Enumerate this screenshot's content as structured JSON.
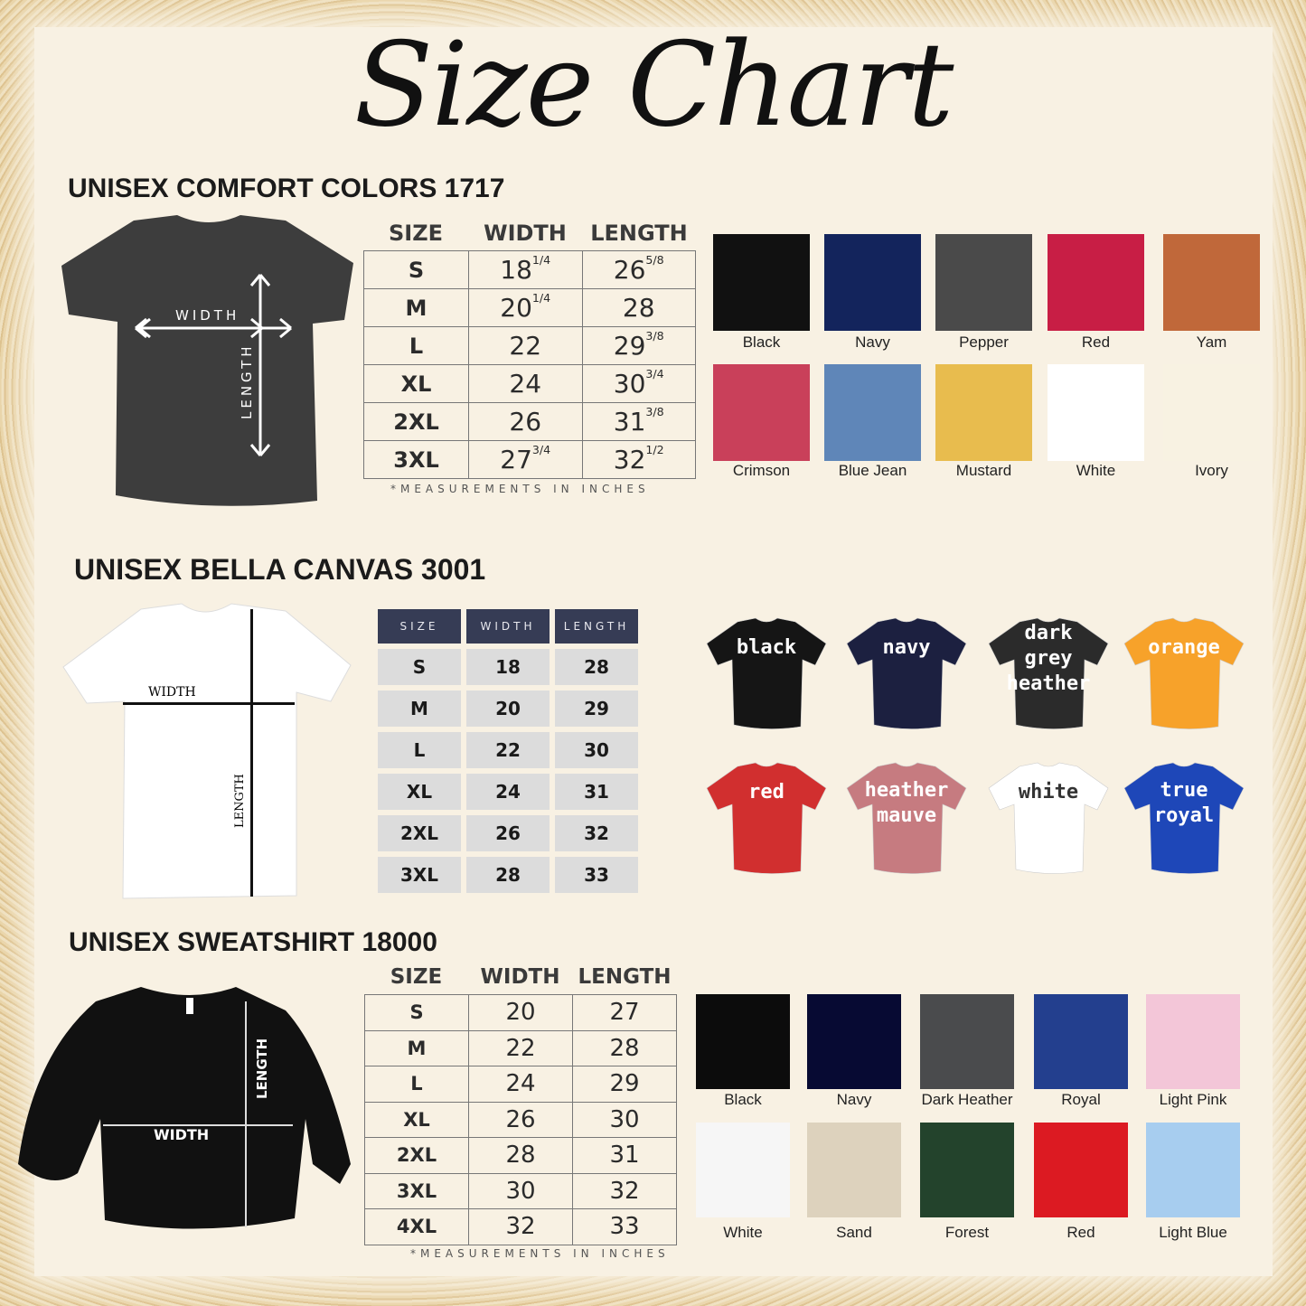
{
  "title": "Size Chart",
  "sections": [
    {
      "heading": "UNISEX COMFORT COLORS 1717",
      "columns": [
        "SIZE",
        "WIDTH",
        "LENGTH"
      ],
      "rows": [
        {
          "size": "S",
          "width": "18",
          "width_frac": "1/4",
          "length": "26",
          "length_frac": "5/8"
        },
        {
          "size": "M",
          "width": "20",
          "width_frac": "1/4",
          "length": "28",
          "length_frac": ""
        },
        {
          "size": "L",
          "width": "22",
          "width_frac": "",
          "length": "29",
          "length_frac": "3/8"
        },
        {
          "size": "XL",
          "width": "24",
          "width_frac": "",
          "length": "30",
          "length_frac": "3/4"
        },
        {
          "size": "2XL",
          "width": "26",
          "width_frac": "",
          "length": "31",
          "length_frac": "3/8"
        },
        {
          "size": "3XL",
          "width": "27",
          "width_frac": "3/4",
          "length": "32",
          "length_frac": "1/2"
        }
      ],
      "note": "*MEASUREMENTS IN INCHES",
      "diagram": {
        "width_label": "WIDTH",
        "length_label": "LENGTH",
        "shirt_color": "#3d3d3d"
      },
      "colors": [
        {
          "name": "Black",
          "hex": "#111111"
        },
        {
          "name": "Navy",
          "hex": "#13245c"
        },
        {
          "name": "Pepper",
          "hex": "#4a4a4a"
        },
        {
          "name": "Red",
          "hex": "#c81e45"
        },
        {
          "name": "Yam",
          "hex": "#c0683a"
        },
        {
          "name": "Crimson",
          "hex": "#c9405a"
        },
        {
          "name": "Blue Jean",
          "hex": "#5f86b8"
        },
        {
          "name": "Mustard",
          "hex": "#e8bc4e"
        },
        {
          "name": "White",
          "hex": "#ffffff"
        },
        {
          "name": "Ivory",
          "hex": "#f8f2e2"
        }
      ]
    },
    {
      "heading": "UNISEX BELLA CANVAS 3001",
      "columns": [
        "SIZE",
        "WIDTH",
        "LENGTH"
      ],
      "rows": [
        {
          "size": "S",
          "width": "18",
          "length": "28"
        },
        {
          "size": "M",
          "width": "20",
          "length": "29"
        },
        {
          "size": "L",
          "width": "22",
          "length": "30"
        },
        {
          "size": "XL",
          "width": "24",
          "length": "31"
        },
        {
          "size": "2XL",
          "width": "26",
          "length": "32"
        },
        {
          "size": "3XL",
          "width": "28",
          "length": "33"
        }
      ],
      "diagram": {
        "width_label": "WIDTH",
        "length_label": "LENGTH",
        "shirt_color": "#ffffff"
      },
      "colors": [
        {
          "name": "black",
          "lines": [
            "black"
          ],
          "hex": "#151515",
          "text": "#ffffff"
        },
        {
          "name": "navy",
          "lines": [
            "navy"
          ],
          "hex": "#1c2040",
          "text": "#ffffff"
        },
        {
          "name": "dark grey heather",
          "lines": [
            "dark",
            "grey",
            "heather"
          ],
          "hex": "#2b2b2b",
          "text": "#ffffff"
        },
        {
          "name": "orange",
          "lines": [
            "orange"
          ],
          "hex": "#f7a22a",
          "text": "#ffffff"
        },
        {
          "name": "red",
          "lines": [
            "red"
          ],
          "hex": "#d12f2f",
          "text": "#ffffff"
        },
        {
          "name": "heather mauve",
          "lines": [
            "heather",
            "mauve"
          ],
          "hex": "#c67b80",
          "text": "#ffffff"
        },
        {
          "name": "white",
          "lines": [
            "white"
          ],
          "hex": "#ffffff",
          "text": "#333333"
        },
        {
          "name": "true royal",
          "lines": [
            "true",
            "royal"
          ],
          "hex": "#1e47b8",
          "text": "#ffffff"
        }
      ]
    },
    {
      "heading": "UNISEX SWEATSHIRT 18000",
      "columns": [
        "SIZE",
        "WIDTH",
        "LENGTH"
      ],
      "rows": [
        {
          "size": "S",
          "width": "20",
          "length": "27"
        },
        {
          "size": "M",
          "width": "22",
          "length": "28"
        },
        {
          "size": "L",
          "width": "24",
          "length": "29"
        },
        {
          "size": "XL",
          "width": "26",
          "length": "30"
        },
        {
          "size": "2XL",
          "width": "28",
          "length": "31"
        },
        {
          "size": "3XL",
          "width": "30",
          "length": "32"
        },
        {
          "size": "4XL",
          "width": "32",
          "length": "33"
        }
      ],
      "note": "*MEASUREMENTS IN INCHES",
      "diagram": {
        "width_label": "WIDTH",
        "length_label": "LENGTH",
        "shirt_color": "#111111"
      },
      "colors": [
        {
          "name": "Black",
          "hex": "#0c0c0c"
        },
        {
          "name": "Navy",
          "hex": "#070a33"
        },
        {
          "name": "Dark Heather",
          "hex": "#4a4b4d"
        },
        {
          "name": "Royal",
          "hex": "#233f8e"
        },
        {
          "name": "Light Pink",
          "hex": "#f3c6d8"
        },
        {
          "name": "White",
          "hex": "#f6f6f6"
        },
        {
          "name": "Sand",
          "hex": "#ddd2bd"
        },
        {
          "name": "Forest",
          "hex": "#23432c"
        },
        {
          "name": "Red",
          "hex": "#dc1a22"
        },
        {
          "name": "Light Blue",
          "hex": "#a7cdef"
        }
      ]
    }
  ]
}
